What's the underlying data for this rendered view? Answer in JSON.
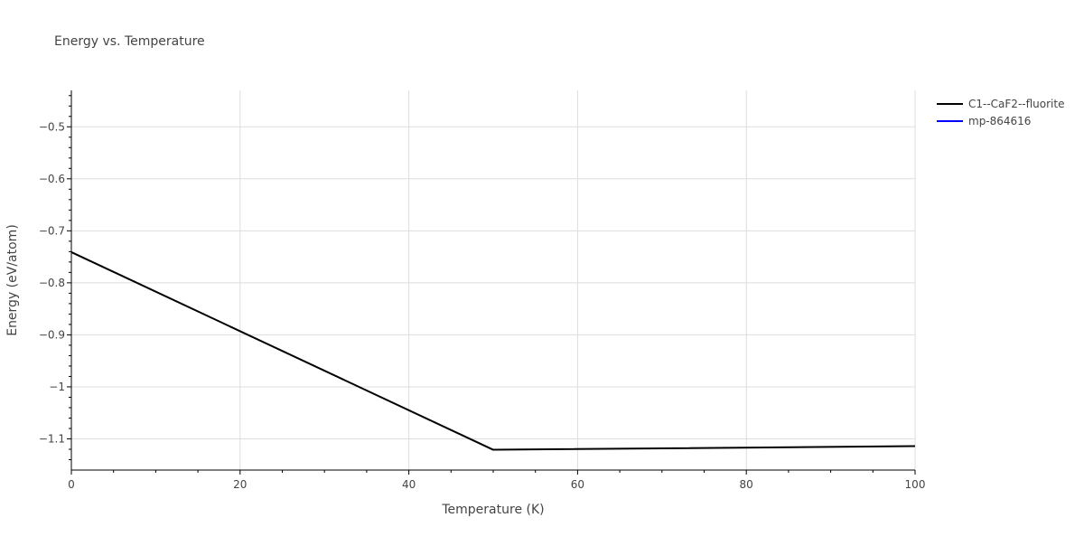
{
  "chart_data": {
    "type": "line",
    "title": "Energy vs. Temperature",
    "xlabel": "Temperature (K)",
    "ylabel": "Energy (eV/atom)",
    "xlim": [
      0,
      100
    ],
    "ylim": [
      -1.16,
      -0.43
    ],
    "x_ticks": [
      0,
      20,
      40,
      60,
      80,
      100
    ],
    "x_tick_labels": [
      "0",
      "20",
      "40",
      "60",
      "80",
      "100"
    ],
    "y_ticks": [
      -0.5,
      -0.6,
      -0.7,
      -0.8,
      -0.9,
      -1.0,
      -1.1
    ],
    "y_tick_labels": [
      "−0.5",
      "−0.6",
      "−0.7",
      "−0.8",
      "−0.9",
      "−1",
      "−1.1"
    ],
    "grid": true,
    "legend_position": "top-right",
    "series": [
      {
        "name": "C1--CaF2--fluorite",
        "color": "#000000",
        "x": [
          0,
          50,
          100
        ],
        "y": [
          -0.741,
          -1.121,
          -1.114
        ]
      },
      {
        "name": "mp-864616",
        "color": "#0000ff",
        "x": [],
        "y": []
      }
    ]
  }
}
